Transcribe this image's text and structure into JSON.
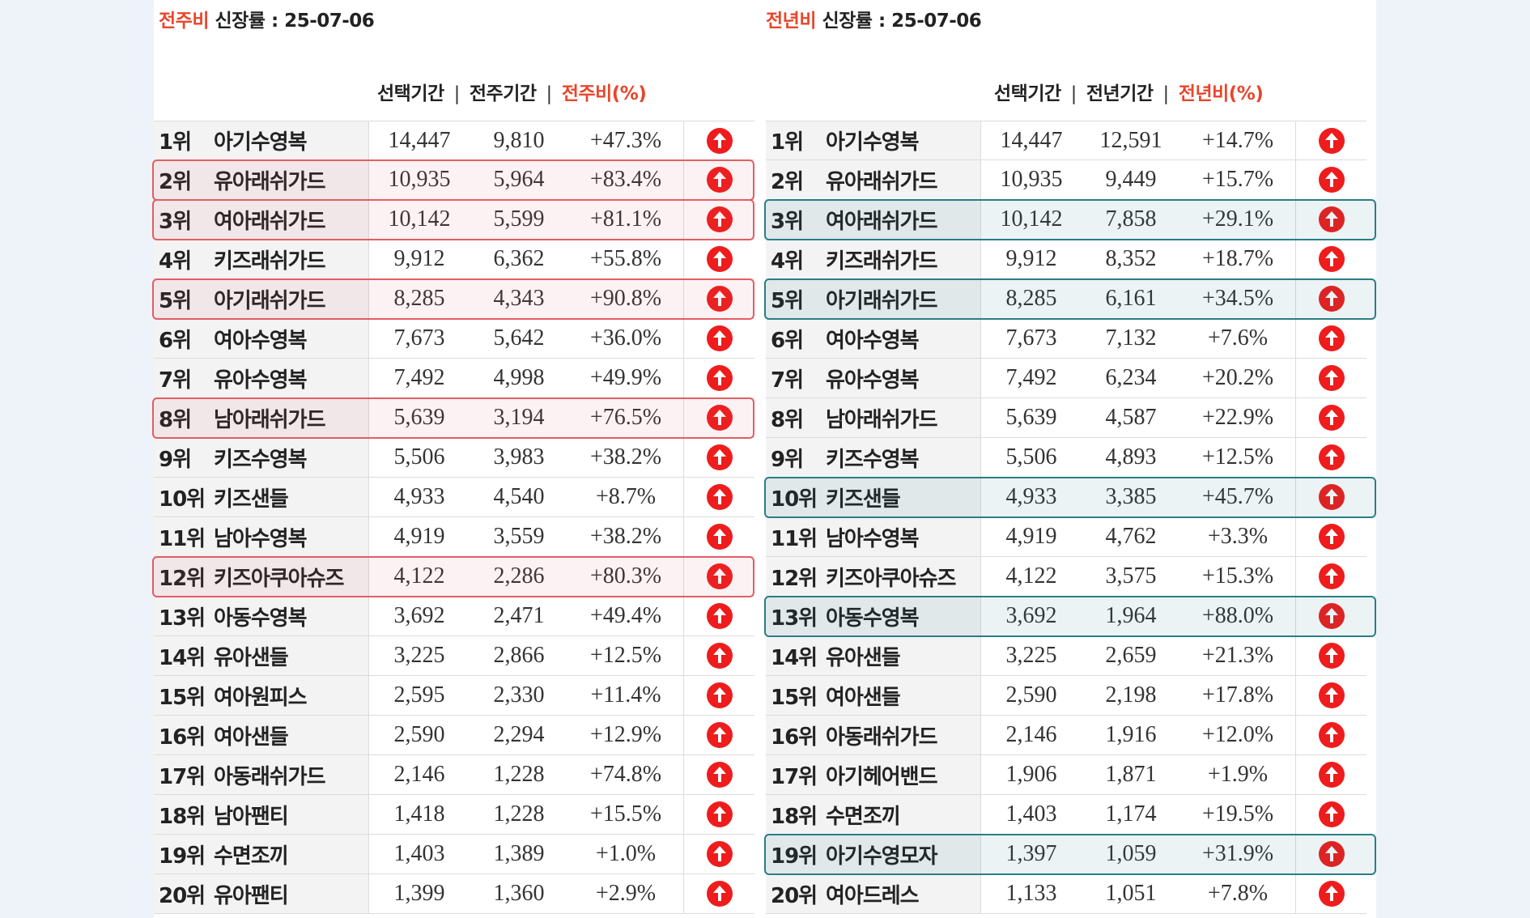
{
  "left": {
    "title_accent": "전주비",
    "title_rest": " 신장률 : 25-07-06",
    "col_selected": "선택기간",
    "col_compare": "전주기간",
    "col_ratio": "전주비(%)",
    "sep": "|",
    "rows": [
      {
        "rank": "1위",
        "name": "아기수영복",
        "selected": "14,447",
        "compare": "9,810",
        "ratio": "+47.3%"
      },
      {
        "rank": "2위",
        "name": "유아래쉬가드",
        "selected": "10,935",
        "compare": "5,964",
        "ratio": "+83.4%"
      },
      {
        "rank": "3위",
        "name": "여아래쉬가드",
        "selected": "10,142",
        "compare": "5,599",
        "ratio": "+81.1%"
      },
      {
        "rank": "4위",
        "name": "키즈래쉬가드",
        "selected": "9,912",
        "compare": "6,362",
        "ratio": "+55.8%"
      },
      {
        "rank": "5위",
        "name": "아기래쉬가드",
        "selected": "8,285",
        "compare": "4,343",
        "ratio": "+90.8%"
      },
      {
        "rank": "6위",
        "name": "여아수영복",
        "selected": "7,673",
        "compare": "5,642",
        "ratio": "+36.0%"
      },
      {
        "rank": "7위",
        "name": "유아수영복",
        "selected": "7,492",
        "compare": "4,998",
        "ratio": "+49.9%"
      },
      {
        "rank": "8위",
        "name": "남아래쉬가드",
        "selected": "5,639",
        "compare": "3,194",
        "ratio": "+76.5%"
      },
      {
        "rank": "9위",
        "name": "키즈수영복",
        "selected": "5,506",
        "compare": "3,983",
        "ratio": "+38.2%"
      },
      {
        "rank": "10위",
        "name": "키즈샌들",
        "selected": "4,933",
        "compare": "4,540",
        "ratio": "+8.7%"
      },
      {
        "rank": "11위",
        "name": "남아수영복",
        "selected": "4,919",
        "compare": "3,559",
        "ratio": "+38.2%"
      },
      {
        "rank": "12위",
        "name": "키즈아쿠아슈즈",
        "selected": "4,122",
        "compare": "2,286",
        "ratio": "+80.3%"
      },
      {
        "rank": "13위",
        "name": "아동수영복",
        "selected": "3,692",
        "compare": "2,471",
        "ratio": "+49.4%"
      },
      {
        "rank": "14위",
        "name": "유아샌들",
        "selected": "3,225",
        "compare": "2,866",
        "ratio": "+12.5%"
      },
      {
        "rank": "15위",
        "name": "여아원피스",
        "selected": "2,595",
        "compare": "2,330",
        "ratio": "+11.4%"
      },
      {
        "rank": "16위",
        "name": "여아샌들",
        "selected": "2,590",
        "compare": "2,294",
        "ratio": "+12.9%"
      },
      {
        "rank": "17위",
        "name": "아동래쉬가드",
        "selected": "2,146",
        "compare": "1,228",
        "ratio": "+74.8%"
      },
      {
        "rank": "18위",
        "name": "남아팬티",
        "selected": "1,418",
        "compare": "1,228",
        "ratio": "+15.5%"
      },
      {
        "rank": "19위",
        "name": "수면조끼",
        "selected": "1,403",
        "compare": "1,389",
        "ratio": "+1.0%"
      },
      {
        "rank": "20위",
        "name": "유아팬티",
        "selected": "1,399",
        "compare": "1,360",
        "ratio": "+2.9%"
      }
    ],
    "highlighted_ranks": [
      2,
      3,
      5,
      8,
      12
    ]
  },
  "right": {
    "title_accent": "전년비",
    "title_rest": " 신장률 : 25-07-06",
    "col_selected": "선택기간",
    "col_compare": "전년기간",
    "col_ratio": "전년비(%)",
    "sep": "|",
    "rows": [
      {
        "rank": "1위",
        "name": "아기수영복",
        "selected": "14,447",
        "compare": "12,591",
        "ratio": "+14.7%"
      },
      {
        "rank": "2위",
        "name": "유아래쉬가드",
        "selected": "10,935",
        "compare": "9,449",
        "ratio": "+15.7%"
      },
      {
        "rank": "3위",
        "name": "여아래쉬가드",
        "selected": "10,142",
        "compare": "7,858",
        "ratio": "+29.1%"
      },
      {
        "rank": "4위",
        "name": "키즈래쉬가드",
        "selected": "9,912",
        "compare": "8,352",
        "ratio": "+18.7%"
      },
      {
        "rank": "5위",
        "name": "아기래쉬가드",
        "selected": "8,285",
        "compare": "6,161",
        "ratio": "+34.5%"
      },
      {
        "rank": "6위",
        "name": "여아수영복",
        "selected": "7,673",
        "compare": "7,132",
        "ratio": "+7.6%"
      },
      {
        "rank": "7위",
        "name": "유아수영복",
        "selected": "7,492",
        "compare": "6,234",
        "ratio": "+20.2%"
      },
      {
        "rank": "8위",
        "name": "남아래쉬가드",
        "selected": "5,639",
        "compare": "4,587",
        "ratio": "+22.9%"
      },
      {
        "rank": "9위",
        "name": "키즈수영복",
        "selected": "5,506",
        "compare": "4,893",
        "ratio": "+12.5%"
      },
      {
        "rank": "10위",
        "name": "키즈샌들",
        "selected": "4,933",
        "compare": "3,385",
        "ratio": "+45.7%"
      },
      {
        "rank": "11위",
        "name": "남아수영복",
        "selected": "4,919",
        "compare": "4,762",
        "ratio": "+3.3%"
      },
      {
        "rank": "12위",
        "name": "키즈아쿠아슈즈",
        "selected": "4,122",
        "compare": "3,575",
        "ratio": "+15.3%"
      },
      {
        "rank": "13위",
        "name": "아동수영복",
        "selected": "3,692",
        "compare": "1,964",
        "ratio": "+88.0%"
      },
      {
        "rank": "14위",
        "name": "유아샌들",
        "selected": "3,225",
        "compare": "2,659",
        "ratio": "+21.3%"
      },
      {
        "rank": "15위",
        "name": "여아샌들",
        "selected": "2,590",
        "compare": "2,198",
        "ratio": "+17.8%"
      },
      {
        "rank": "16위",
        "name": "아동래쉬가드",
        "selected": "2,146",
        "compare": "1,916",
        "ratio": "+12.0%"
      },
      {
        "rank": "17위",
        "name": "아기헤어밴드",
        "selected": "1,906",
        "compare": "1,871",
        "ratio": "+1.9%"
      },
      {
        "rank": "18위",
        "name": "수면조끼",
        "selected": "1,403",
        "compare": "1,174",
        "ratio": "+19.5%"
      },
      {
        "rank": "19위",
        "name": "아기수영모자",
        "selected": "1,397",
        "compare": "1,059",
        "ratio": "+31.9%"
      },
      {
        "rank": "20위",
        "name": "여아드레스",
        "selected": "1,133",
        "compare": "1,051",
        "ratio": "+7.8%"
      }
    ],
    "highlighted_ranks": [
      3,
      5,
      10,
      13,
      19
    ]
  },
  "icons": {
    "trend": "arrow-up-circle-icon"
  },
  "colors": {
    "accent": "#e8462c",
    "arrow": "#ee1c1c",
    "highlight_left": "#e15e64",
    "highlight_right": "#2a7e86"
  }
}
